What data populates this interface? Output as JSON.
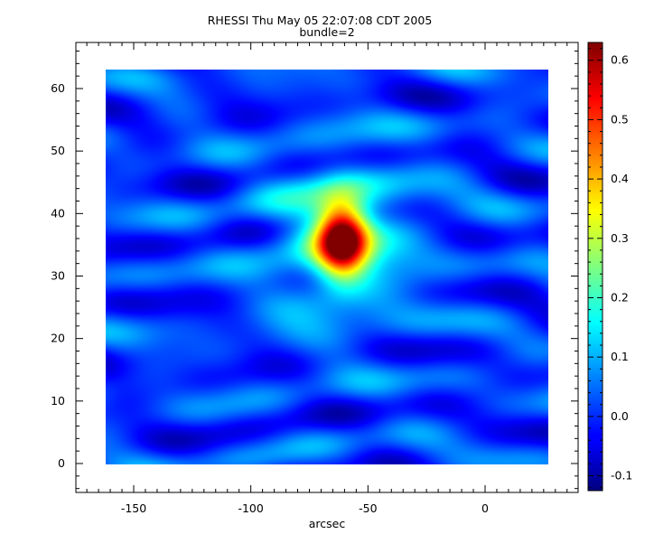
{
  "chart_data": {
    "type": "heatmap",
    "title": "RHESSI Thu May 05 22:07:08 CDT 2005",
    "subtitle": "bundle=2",
    "xlabel": "arcsec",
    "ylabel": "",
    "xlim": [
      -175,
      40
    ],
    "ylim": [
      -4,
      68
    ],
    "x_ticks": [
      -150,
      -100,
      -50,
      0
    ],
    "y_ticks": [
      0,
      10,
      20,
      30,
      40,
      50,
      60
    ],
    "image_extent": {
      "x": [
        -162,
        27
      ],
      "y": [
        0,
        63
      ]
    },
    "colorscale": {
      "name": "jet",
      "min": -0.125,
      "max": 0.63,
      "ticks": [
        -0.1,
        0.0,
        0.1,
        0.2,
        0.3,
        0.4,
        0.5,
        0.6
      ],
      "tick_labels": [
        "-0.1",
        "0.0",
        "0.1",
        "0.2",
        "0.3",
        "0.4",
        "0.5",
        "0.6"
      ]
    },
    "grid": false,
    "peak": {
      "x": -61,
      "y": 36,
      "value": 0.63
    }
  }
}
